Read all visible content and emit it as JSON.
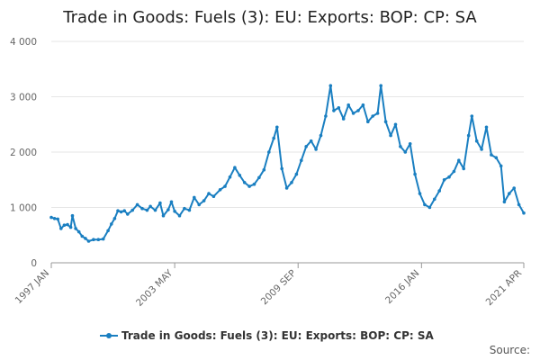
{
  "chart_data": {
    "type": "line",
    "title": "Trade in Goods: Fuels (3): EU: Exports: BOP: CP: SA",
    "xlabel": "",
    "ylabel": "",
    "ylim": [
      0,
      4000
    ],
    "xlim": [
      "1997 JAN",
      "2021 APR"
    ],
    "yticks": [
      0,
      1000,
      2000,
      3000,
      4000
    ],
    "ytick_labels": [
      "0",
      "1 000",
      "2 000",
      "3 000",
      "4 000"
    ],
    "xtick_labels": [
      "1997 JAN",
      "2003 MAY",
      "2009 SEP",
      "2016 JAN",
      "2021 APR"
    ],
    "grid": "horizontal",
    "legend_position": "bottom",
    "series": [
      {
        "name": "Trade in Goods: Fuels (3): EU: Exports: BOP: CP: SA",
        "color": "#1a7fc1",
        "points": [
          [
            "1997-01",
            820
          ],
          [
            "1997-03",
            800
          ],
          [
            "1997-05",
            790
          ],
          [
            "1997-07",
            620
          ],
          [
            "1997-09",
            680
          ],
          [
            "1997-11",
            690
          ],
          [
            "1998-01",
            640
          ],
          [
            "1998-02",
            850
          ],
          [
            "1998-04",
            620
          ],
          [
            "1998-06",
            560
          ],
          [
            "1998-08",
            480
          ],
          [
            "1998-10",
            440
          ],
          [
            "1998-12",
            390
          ],
          [
            "1999-03",
            420
          ],
          [
            "1999-06",
            420
          ],
          [
            "1999-09",
            430
          ],
          [
            "1999-12",
            580
          ],
          [
            "2000-02",
            700
          ],
          [
            "2000-04",
            800
          ],
          [
            "2000-06",
            940
          ],
          [
            "2000-08",
            920
          ],
          [
            "2000-10",
            940
          ],
          [
            "2000-12",
            880
          ],
          [
            "2001-03",
            950
          ],
          [
            "2001-06",
            1050
          ],
          [
            "2001-09",
            980
          ],
          [
            "2001-12",
            950
          ],
          [
            "2002-02",
            1020
          ],
          [
            "2002-05",
            950
          ],
          [
            "2002-08",
            1080
          ],
          [
            "2002-10",
            850
          ],
          [
            "2003-01",
            960
          ],
          [
            "2003-03",
            1100
          ],
          [
            "2003-05",
            930
          ],
          [
            "2003-08",
            850
          ],
          [
            "2003-11",
            980
          ],
          [
            "2004-02",
            950
          ],
          [
            "2004-05",
            1180
          ],
          [
            "2004-08",
            1050
          ],
          [
            "2004-11",
            1120
          ],
          [
            "2005-02",
            1250
          ],
          [
            "2005-05",
            1200
          ],
          [
            "2005-09",
            1320
          ],
          [
            "2005-12",
            1380
          ],
          [
            "2006-03",
            1550
          ],
          [
            "2006-06",
            1720
          ],
          [
            "2006-09",
            1580
          ],
          [
            "2006-12",
            1450
          ],
          [
            "2007-03",
            1380
          ],
          [
            "2007-06",
            1420
          ],
          [
            "2007-09",
            1540
          ],
          [
            "2007-12",
            1680
          ],
          [
            "2008-03",
            2000
          ],
          [
            "2008-06",
            2250
          ],
          [
            "2008-08",
            2450
          ],
          [
            "2008-11",
            1700
          ],
          [
            "2009-02",
            1350
          ],
          [
            "2009-05",
            1450
          ],
          [
            "2009-08",
            1600
          ],
          [
            "2009-11",
            1850
          ],
          [
            "2010-02",
            2100
          ],
          [
            "2010-05",
            2200
          ],
          [
            "2010-08",
            2050
          ],
          [
            "2010-11",
            2300
          ],
          [
            "2011-02",
            2650
          ],
          [
            "2011-05",
            3200
          ],
          [
            "2011-07",
            2750
          ],
          [
            "2011-10",
            2800
          ],
          [
            "2012-01",
            2600
          ],
          [
            "2012-04",
            2850
          ],
          [
            "2012-07",
            2700
          ],
          [
            "2012-10",
            2750
          ],
          [
            "2013-01",
            2850
          ],
          [
            "2013-04",
            2550
          ],
          [
            "2013-07",
            2650
          ],
          [
            "2013-10",
            2700
          ],
          [
            "2013-12",
            3200
          ],
          [
            "2014-03",
            2550
          ],
          [
            "2014-06",
            2300
          ],
          [
            "2014-09",
            2500
          ],
          [
            "2014-12",
            2100
          ],
          [
            "2015-03",
            2000
          ],
          [
            "2015-06",
            2150
          ],
          [
            "2015-09",
            1600
          ],
          [
            "2015-12",
            1250
          ],
          [
            "2016-03",
            1050
          ],
          [
            "2016-06",
            1000
          ],
          [
            "2016-09",
            1150
          ],
          [
            "2016-12",
            1300
          ],
          [
            "2017-03",
            1500
          ],
          [
            "2017-06",
            1550
          ],
          [
            "2017-09",
            1650
          ],
          [
            "2017-12",
            1850
          ],
          [
            "2018-03",
            1700
          ],
          [
            "2018-06",
            2300
          ],
          [
            "2018-08",
            2650
          ],
          [
            "2018-11",
            2200
          ],
          [
            "2019-02",
            2050
          ],
          [
            "2019-05",
            2450
          ],
          [
            "2019-08",
            1950
          ],
          [
            "2019-11",
            1900
          ],
          [
            "2020-02",
            1750
          ],
          [
            "2020-04",
            1100
          ],
          [
            "2020-07",
            1250
          ],
          [
            "2020-10",
            1350
          ],
          [
            "2021-01",
            1050
          ],
          [
            "2021-04",
            900
          ]
        ]
      }
    ]
  },
  "source_text": "Source:"
}
